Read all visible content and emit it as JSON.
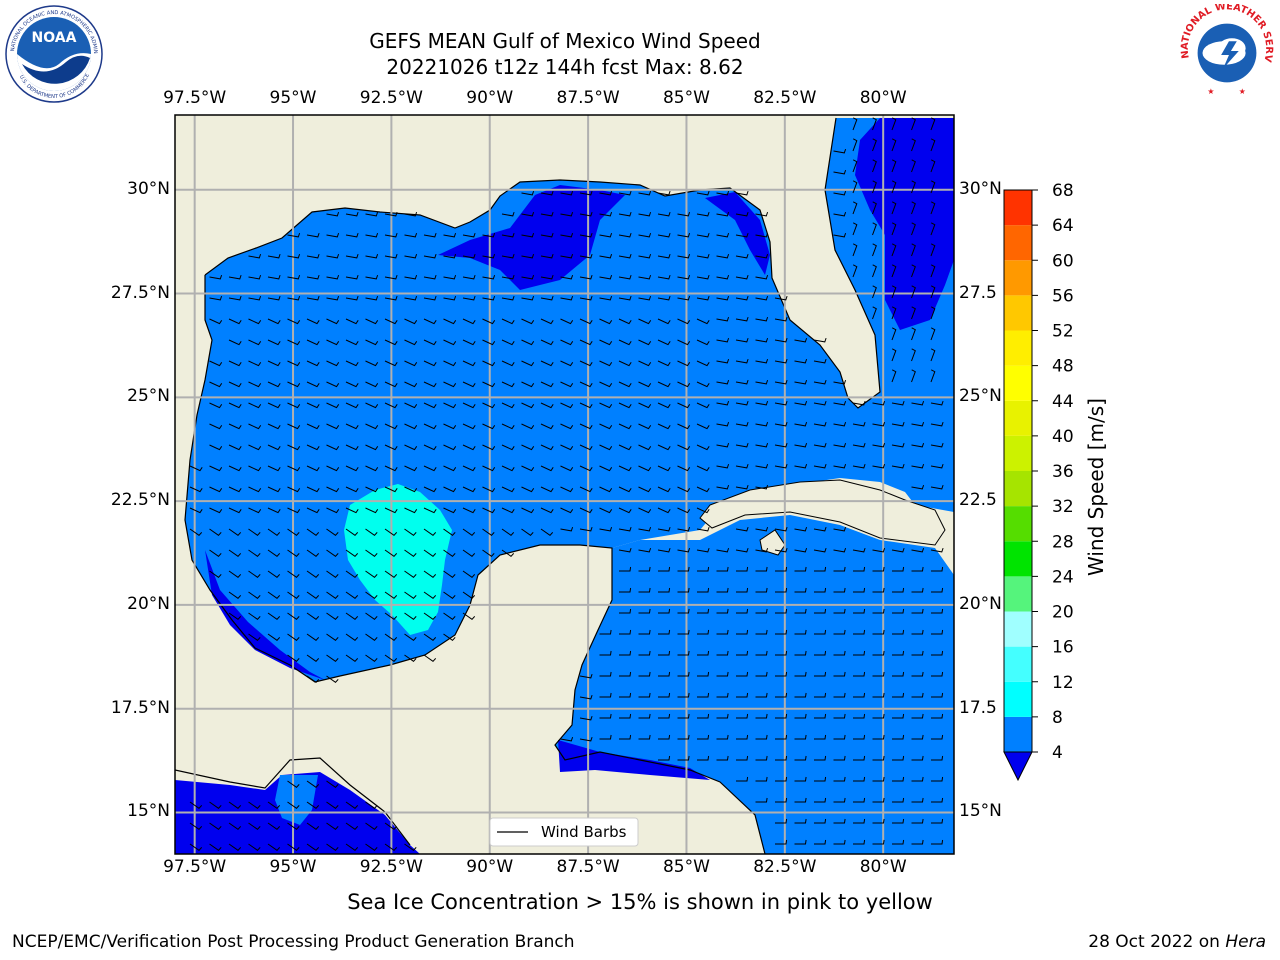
{
  "header": {
    "title_line1": "GEFS MEAN Gulf of Mexico Wind Speed",
    "title_line2": "20221026 t12z 144h fcst   Max: 8.62"
  },
  "logos": {
    "noaa_text": "NOAA",
    "noaa_ring_text": "NATIONAL OCEANIC AND ATMOSPHERIC ADMINISTRATION",
    "noaa_ring_bottom": "U.S. DEPARTMENT OF COMMERCE",
    "nws_ring_text": "NATIONAL WEATHER SERVICE"
  },
  "map": {
    "legend_label": "Wind Barbs",
    "colors": {
      "land": "#efeedc",
      "ocean_4_8": "#0080ff",
      "ocean_lt4": "#0000ee",
      "ocean_8_12": "#00ffee",
      "grid": "#b0b0b0"
    }
  },
  "chart_data": {
    "type": "heatmap",
    "title": "GEFS MEAN Gulf of Mexico Wind Speed",
    "subtitle": "20221026 t12z 144h fcst   Max: 8.62",
    "max_value": 8.62,
    "x_ticks": [
      "97.5°W",
      "95°W",
      "92.5°W",
      "90°W",
      "87.5°W",
      "85°W",
      "82.5°W",
      "80°W"
    ],
    "x_tick_values": [
      -97.5,
      -95,
      -92.5,
      -90,
      -87.5,
      -85,
      -82.5,
      -80
    ],
    "y_ticks_left": [
      "30°N",
      "27.5°N",
      "25°N",
      "22.5°N",
      "20°N",
      "17.5°N",
      "15°N"
    ],
    "y_ticks_right": [
      "30°N",
      "27.5",
      "25°N",
      "22.5",
      "20°N",
      "17.5",
      "15°N"
    ],
    "y_tick_values": [
      30,
      27.5,
      25,
      22.5,
      20,
      17.5,
      15
    ],
    "xlim": [
      -98,
      -78.2
    ],
    "ylim": [
      14,
      31.8
    ],
    "colorbar": {
      "label": "Wind Speed [m/s]",
      "ticks": [
        "68",
        "64",
        "60",
        "56",
        "52",
        "48",
        "44",
        "40",
        "36",
        "32",
        "28",
        "24",
        "20",
        "16",
        "12",
        "8",
        "4"
      ],
      "bounds": [
        4,
        8,
        12,
        16,
        20,
        24,
        28,
        32,
        36,
        40,
        44,
        48,
        52,
        56,
        60,
        64,
        68
      ],
      "colors": [
        "#0080ff",
        "#00ffff",
        "#44ffff",
        "#a0ffff",
        "#55f47c",
        "#00e400",
        "#55dd00",
        "#a6e400",
        "#ccf200",
        "#e8f200",
        "#ffff00",
        "#ffee00",
        "#ffc800",
        "#ff9900",
        "#ff6600",
        "#ff3300",
        "#ff0000"
      ],
      "under_color": "#0000ee"
    }
  },
  "footer": {
    "note": "Sea Ice Concentration > 15% is shown in pink to yellow",
    "left": "NCEP/EMC/Verification Post Processing Product Generation Branch",
    "right_prefix": "28 Oct 2022 on ",
    "right_machine": "Hera"
  }
}
